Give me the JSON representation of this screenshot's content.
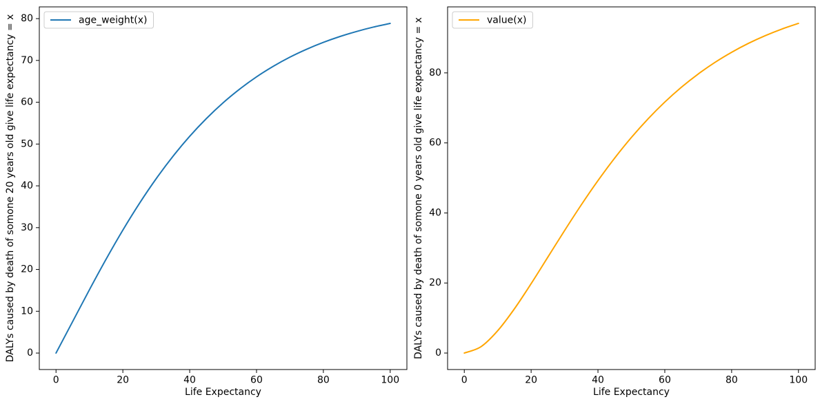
{
  "figure": {
    "background": "#ffffff",
    "axes_color": "#000000",
    "tick_color": "#000000",
    "legend_border_color": "#cccccc",
    "legend_fill": "rgba(255,255,255,0.8)"
  },
  "chart_data": [
    {
      "type": "line",
      "title": "",
      "xlabel": "Life Expectancy",
      "ylabel": "DALYs caused by death of somone 20 years old give life expectancy = x",
      "xlim": [
        -5,
        105
      ],
      "ylim": [
        -3.94,
        82.81
      ],
      "xticks": [
        0,
        20,
        40,
        60,
        80,
        100
      ],
      "yticks": [
        0,
        10,
        20,
        30,
        40,
        50,
        60,
        70,
        80
      ],
      "grid": false,
      "legend_position": "upper-left",
      "series": [
        {
          "name": "age_weight(x)",
          "color": "#1f77b4",
          "x": [
            0,
            5,
            10,
            15,
            20,
            25,
            30,
            35,
            40,
            45,
            50,
            55,
            60,
            65,
            70,
            75,
            80,
            85,
            90,
            95,
            100
          ],
          "y": [
            0,
            7.57,
            15.15,
            22.48,
            29.42,
            35.85,
            41.74,
            47.07,
            51.85,
            56.1,
            59.87,
            63.17,
            66.07,
            68.59,
            70.79,
            72.68,
            74.32,
            75.73,
            76.94,
            77.98,
            78.86
          ]
        }
      ]
    },
    {
      "type": "line",
      "title": "",
      "xlabel": "Life Expectancy",
      "ylabel": "DALYs caused by death of somone 0 years old give life expectancy = x",
      "xlim": [
        -5,
        105
      ],
      "ylim": [
        -4.71,
        98.84
      ],
      "xticks": [
        0,
        20,
        40,
        60,
        80,
        100
      ],
      "yticks": [
        0,
        20,
        40,
        60,
        80
      ],
      "grid": false,
      "legend_position": "upper-left",
      "series": [
        {
          "name": "value(x)",
          "color": "#ffa500",
          "x": [
            0,
            5,
            10,
            15,
            20,
            25,
            30,
            35,
            40,
            45,
            50,
            55,
            60,
            65,
            70,
            75,
            80,
            85,
            90,
            95,
            100
          ],
          "y": [
            0,
            1.82,
            6.38,
            12.63,
            19.81,
            27.38,
            34.96,
            42.3,
            49.23,
            55.66,
            61.55,
            66.88,
            71.66,
            75.92,
            79.68,
            82.99,
            85.88,
            88.41,
            90.6,
            92.5,
            94.13
          ]
        }
      ]
    }
  ]
}
